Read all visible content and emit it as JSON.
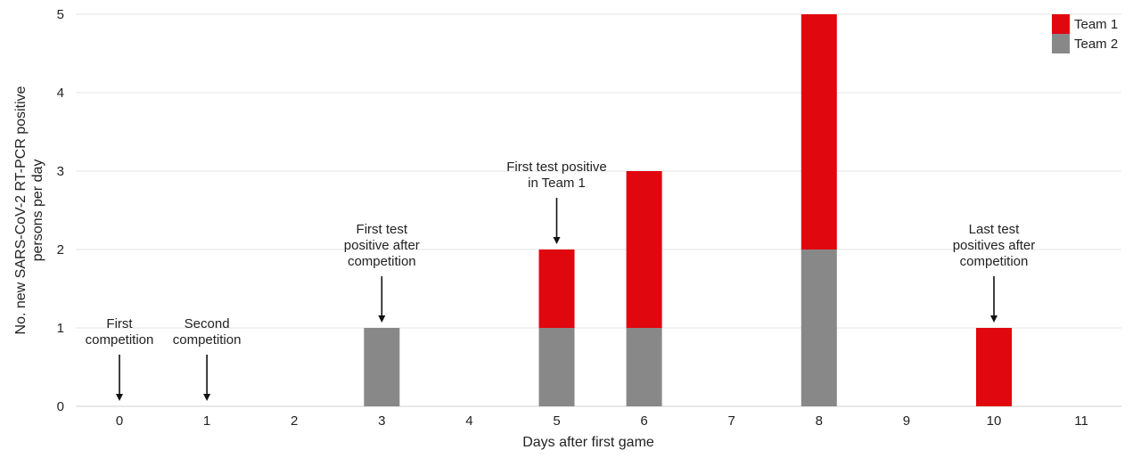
{
  "chart_data": {
    "type": "bar",
    "stacked": true,
    "title": "",
    "xlabel": "Days after first game",
    "ylabel": "No. new SARS-CoV-2 RT-PCR positive persons per day",
    "categories": [
      "0",
      "1",
      "2",
      "3",
      "4",
      "5",
      "6",
      "7",
      "8",
      "9",
      "10",
      "11"
    ],
    "ylim": [
      0,
      5
    ],
    "yticks": [
      0,
      1,
      2,
      3,
      4,
      5
    ],
    "grid": true,
    "legend_position": "top-right",
    "series": [
      {
        "name": "Team 2",
        "color": "#888888",
        "values": [
          0,
          0,
          0,
          1,
          0,
          1,
          1,
          0,
          2,
          0,
          0,
          0
        ]
      },
      {
        "name": "Team 1",
        "color": "#e0070f",
        "values": [
          0,
          0,
          0,
          0,
          0,
          1,
          2,
          0,
          3,
          0,
          1,
          0
        ]
      }
    ],
    "legend_order": [
      "Team 1",
      "Team 2"
    ],
    "annotations": [
      {
        "day": 0,
        "lines": [
          "First",
          "competition"
        ]
      },
      {
        "day": 1,
        "lines": [
          "Second",
          "competition"
        ]
      },
      {
        "day": 3,
        "lines": [
          "First test",
          "positive after",
          "competition"
        ]
      },
      {
        "day": 5,
        "lines": [
          "First test positive",
          "in Team 1"
        ]
      },
      {
        "day": 10,
        "lines": [
          "Last test",
          "positives after",
          "competition"
        ]
      }
    ]
  }
}
